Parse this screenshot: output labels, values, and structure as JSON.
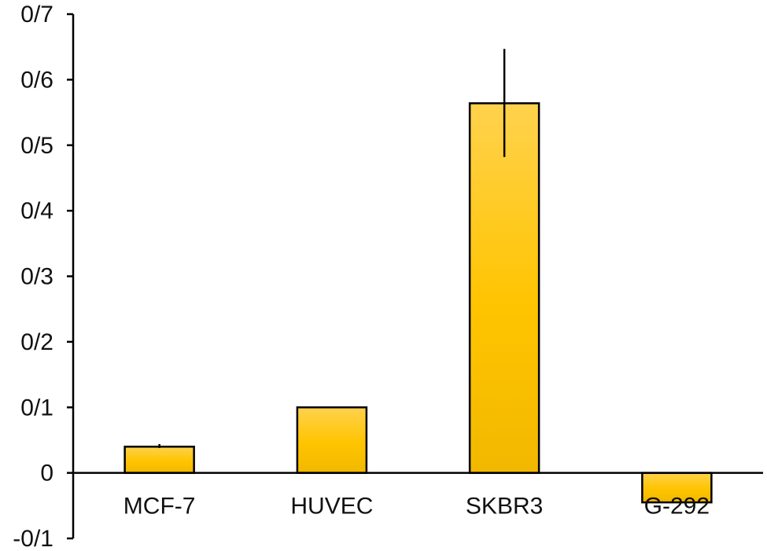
{
  "chart_data": {
    "type": "bar",
    "title": "",
    "xlabel": "",
    "ylabel": "",
    "categories": [
      "MCF-7",
      "HUVEC",
      "SKBR3",
      "G-292"
    ],
    "values": [
      0.04,
      0.1,
      0.564,
      -0.045
    ],
    "error_low": [
      0.038,
      0.1,
      0.482,
      -0.045
    ],
    "error_high": [
      0.044,
      0.1,
      0.647,
      -0.045
    ],
    "ylim": [
      -0.1,
      0.7
    ],
    "yticks": [
      -0.1,
      0,
      0.1,
      0.2,
      0.3,
      0.4,
      0.5,
      0.6,
      0.7
    ],
    "ytick_labels": [
      "-0/1",
      "0",
      "0/1",
      "0/2",
      "0/3",
      "0/4",
      "0/5",
      "0/6",
      "0/7"
    ],
    "grid": false,
    "legend": "none",
    "bar_color_top": "#ffd24d",
    "bar_color_bottom": "#f2b800"
  }
}
